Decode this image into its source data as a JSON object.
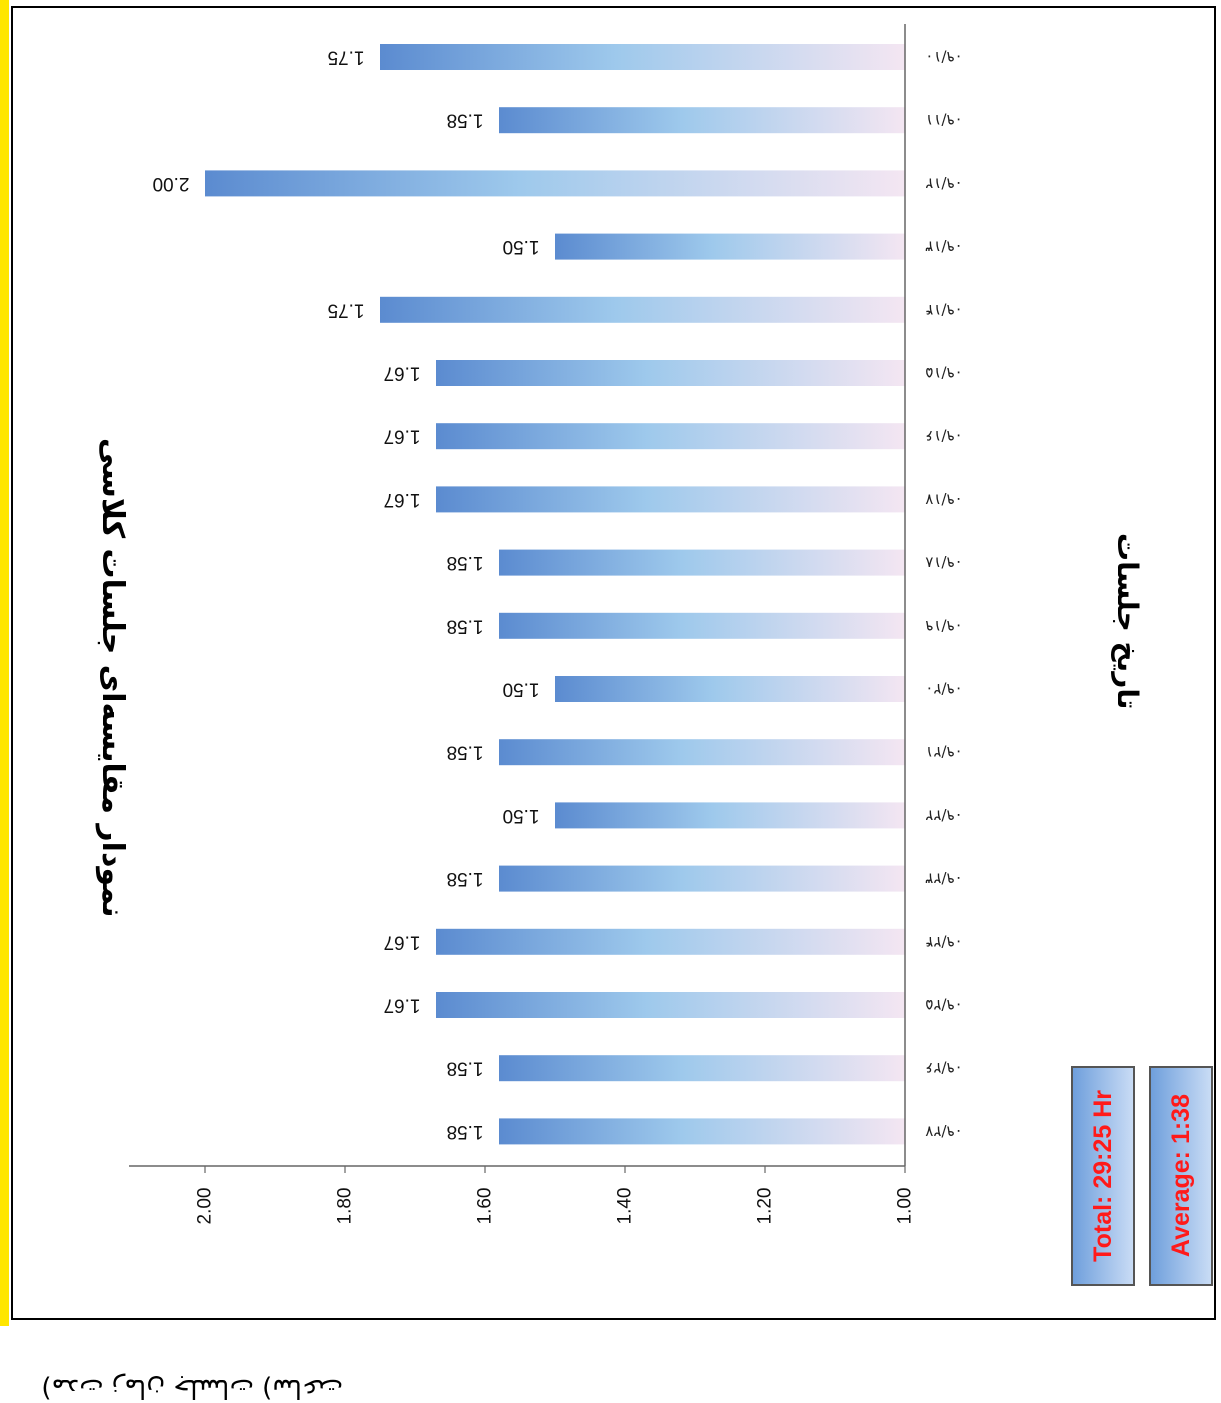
{
  "chart_data": {
    "type": "bar",
    "orientation": "horizontal",
    "title": "نمودار مقایسه‌ای جلسات کلاسی",
    "ylabel": "(ﻣﺪﺕ ﺯﻣﺎﻥ ﺟﻠﺴﺎﺕ (ﺳﺎﻋﺖ",
    "xlabel": "تاریخ جلسات",
    "categories": [
      "۰۹/۱۰",
      "۰۹/۱۱",
      "۰۹/۱۲",
      "۰۹/۱۳",
      "۰۹/۱۴",
      "۰۹/۱۵",
      "۰۹/۱۶",
      "۰۹/۱۷",
      "۰۹/۱۸",
      "۰۹/۱۹",
      "۰۹/۲۰",
      "۰۹/۲۱",
      "۰۹/۲۲",
      "۰۹/۲۳",
      "۰۹/۲۴",
      "۰۹/۲۵",
      "۰۹/۲۶",
      "۰۹/۲۷"
    ],
    "values": [
      1.75,
      1.58,
      2.0,
      1.5,
      1.75,
      1.67,
      1.67,
      1.67,
      1.58,
      1.58,
      1.5,
      1.58,
      1.5,
      1.58,
      1.67,
      1.67,
      1.58,
      1.58
    ],
    "data_labels": [
      "1.75",
      "1.58",
      "2.00",
      "1.50",
      "1.75",
      "1.67",
      "1.67",
      "1.67",
      "1.58",
      "1.58",
      "1.50",
      "1.58",
      "1.50",
      "1.58",
      "1.67",
      "1.67",
      "1.58",
      "1.58"
    ],
    "ylim": [
      1.0,
      2.1
    ],
    "ticks": [
      "1.00",
      "1.20",
      "1.40",
      "1.60",
      "1.80",
      "2.00"
    ],
    "tick_values": [
      1.0,
      1.2,
      1.4,
      1.6,
      1.8,
      2.0
    ],
    "grid": false,
    "bar_colors": [
      "#5b8bd0",
      "#9ec9ec",
      "#f4e6f2"
    ]
  },
  "summary": {
    "total": "Total: 29:25 Hr",
    "average": "Average: 1:38"
  }
}
